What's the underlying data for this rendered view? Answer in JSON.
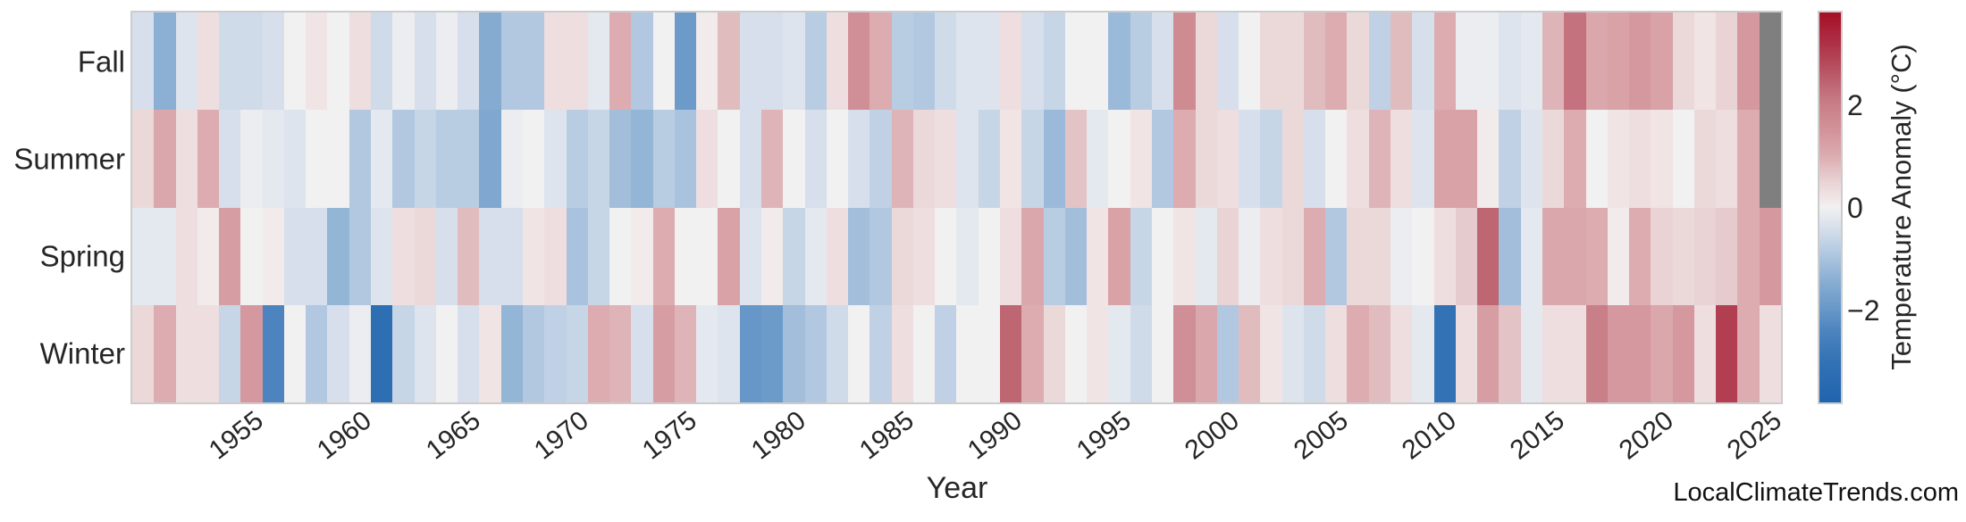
{
  "watermark": "LocalClimateTrends.com",
  "chart_data": {
    "type": "heatmap",
    "title": "",
    "xlabel": "Year",
    "ylabel": "",
    "legend_position": "right-colorbar",
    "grid": false,
    "rows": [
      "Fall",
      "Summer",
      "Spring",
      "Winter"
    ],
    "years": [
      1950,
      1951,
      1952,
      1953,
      1954,
      1955,
      1956,
      1957,
      1958,
      1959,
      1960,
      1961,
      1962,
      1963,
      1964,
      1965,
      1966,
      1967,
      1968,
      1969,
      1970,
      1971,
      1972,
      1973,
      1974,
      1975,
      1976,
      1977,
      1978,
      1979,
      1980,
      1981,
      1982,
      1983,
      1984,
      1985,
      1986,
      1987,
      1988,
      1989,
      1990,
      1991,
      1992,
      1993,
      1994,
      1995,
      1996,
      1997,
      1998,
      1999,
      2000,
      2001,
      2002,
      2003,
      2004,
      2005,
      2006,
      2007,
      2008,
      2009,
      2010,
      2011,
      2012,
      2013,
      2014,
      2015,
      2016,
      2017,
      2018,
      2019,
      2020,
      2021,
      2022,
      2023,
      2024,
      2025
    ],
    "x_ticks": [
      1955,
      1960,
      1965,
      1970,
      1975,
      1980,
      1985,
      1990,
      1995,
      2000,
      2005,
      2010,
      2015,
      2020,
      2025
    ],
    "series": [
      {
        "name": "Fall",
        "values": [
          -0.4,
          -1.4,
          -0.3,
          0.3,
          -0.5,
          -0.5,
          -0.4,
          0,
          0.2,
          0,
          0.3,
          -0.5,
          -0.1,
          -0.4,
          -0.1,
          -0.4,
          -1.5,
          -0.9,
          -0.9,
          0.3,
          0.3,
          -0.2,
          1,
          -0.9,
          0,
          -1.9,
          0.1,
          0.8,
          -0.4,
          -0.4,
          -0.3,
          -0.8,
          0.3,
          1.6,
          1,
          -0.8,
          -0.9,
          -0.5,
          -0.3,
          -0.3,
          0.3,
          -0.4,
          -0.6,
          0,
          0,
          -1.2,
          -0.8,
          -0.4,
          1.7,
          0.4,
          -0.4,
          0,
          0.4,
          0.4,
          0.8,
          1,
          0.4,
          -0.7,
          0.8,
          -0.4,
          1,
          -0.1,
          -0.1,
          -0.3,
          -0.2,
          0.9,
          2.2,
          1.1,
          1.2,
          1.4,
          1.2,
          0.4,
          0.2,
          0.5,
          1.4,
          null
        ]
      },
      {
        "name": "Summer",
        "values": [
          0.4,
          1.1,
          0.3,
          1,
          -0.4,
          -0.1,
          -0.2,
          -0.3,
          0,
          0,
          -0.9,
          -0.2,
          -0.9,
          -0.6,
          -0.8,
          -0.8,
          -1.6,
          -0.1,
          0,
          -0.3,
          -0.8,
          -0.6,
          -1.1,
          -1.3,
          -0.8,
          -1,
          0.3,
          0,
          -0.4,
          0.9,
          0,
          -0.4,
          0,
          -0.4,
          -0.7,
          0.9,
          0.4,
          0.3,
          -0.3,
          -0.6,
          0.2,
          -0.6,
          -1.2,
          0.7,
          -0.2,
          0,
          0.2,
          -0.9,
          1,
          0.4,
          0.3,
          -0.4,
          -0.6,
          0.4,
          -0.4,
          0,
          0.3,
          0.9,
          0.3,
          -0.3,
          1.2,
          1.2,
          0.1,
          -0.7,
          -0.3,
          0.4,
          1,
          0,
          0.2,
          0.3,
          0.2,
          0,
          0.4,
          0.3,
          1,
          null
        ]
      },
      {
        "name": "Spring",
        "values": [
          -0.2,
          -0.2,
          0.3,
          0.1,
          1.3,
          0,
          0.1,
          -0.4,
          -0.4,
          -1.3,
          -0.9,
          -0.3,
          0.3,
          0.4,
          -0.4,
          0.8,
          -0.4,
          -0.4,
          0.2,
          0.3,
          -1,
          -0.6,
          0,
          0.1,
          1,
          0,
          0,
          1.2,
          -0.3,
          0.1,
          -0.6,
          -0.2,
          0.3,
          -1.1,
          -0.9,
          0.4,
          0.3,
          0,
          -0.2,
          0,
          0.3,
          1.1,
          -0.8,
          -1.1,
          0.2,
          1.2,
          -0.6,
          0,
          0.2,
          -0.2,
          0.5,
          -0.1,
          0.3,
          0.4,
          1,
          -0.9,
          0.4,
          0.4,
          -0.1,
          0,
          0.3,
          0.6,
          2.4,
          -1.1,
          -0.2,
          1.1,
          1.1,
          1,
          0.1,
          1,
          0.5,
          0.4,
          0.5,
          0.6,
          1,
          1.4
        ]
      },
      {
        "name": "Winter",
        "values": [
          0.4,
          1,
          0.3,
          0.3,
          -0.6,
          1.4,
          -2.4,
          0,
          -0.9,
          -0.4,
          -0.1,
          -3.2,
          -0.6,
          -0.3,
          0,
          -0.4,
          0.2,
          -1.3,
          -0.9,
          -0.7,
          -0.6,
          1,
          0.9,
          -0.4,
          1.3,
          0.9,
          -0.2,
          -0.3,
          -2,
          -1.9,
          -1.1,
          -0.9,
          -0.5,
          0,
          -0.7,
          0.3,
          0,
          -0.7,
          0,
          0,
          2.4,
          1,
          0.4,
          0,
          0.2,
          -0.2,
          -0.5,
          0,
          1.6,
          1.1,
          -0.9,
          0.8,
          0.2,
          -0.3,
          -0.5,
          0.3,
          1,
          0.8,
          0.3,
          -0.2,
          -3,
          0.3,
          1.3,
          0.7,
          -0.2,
          0.3,
          0.3,
          2,
          1.4,
          1.4,
          1.1,
          1.4,
          0.3,
          3,
          1,
          0.3
        ]
      }
    ],
    "colorbar": {
      "label": "Temperature Anomaly (°C)",
      "ticks": [
        {
          "value": 2,
          "label": "2"
        },
        {
          "value": 0,
          "label": "0"
        },
        {
          "value": -2,
          "label": "−2"
        }
      ],
      "vmin": -3.8,
      "vmax": 3.8
    },
    "colors": {
      "missing": "#7f7f7f",
      "plot_border": "#cccccc",
      "text": "#262626",
      "colormap_stops": [
        {
          "v": -3.8,
          "c": "#2164ae"
        },
        {
          "v": -3.0,
          "c": "#3272b5"
        },
        {
          "v": -2.4,
          "c": "#4d84bf"
        },
        {
          "v": -2.0,
          "c": "#6697c8"
        },
        {
          "v": -1.5,
          "c": "#85abd1"
        },
        {
          "v": -1.0,
          "c": "#a9c3de"
        },
        {
          "v": -0.5,
          "c": "#cfdbe9"
        },
        {
          "v": -0.2,
          "c": "#e4e8ef"
        },
        {
          "v": 0.0,
          "c": "#f2f1f1"
        },
        {
          "v": 0.2,
          "c": "#f0e4e5"
        },
        {
          "v": 0.5,
          "c": "#e9d3d5"
        },
        {
          "v": 1.0,
          "c": "#dcacb1"
        },
        {
          "v": 1.5,
          "c": "#d29399"
        },
        {
          "v": 2.0,
          "c": "#c87f88"
        },
        {
          "v": 2.4,
          "c": "#bf6673"
        },
        {
          "v": 2.8,
          "c": "#b54a5b"
        },
        {
          "v": 3.2,
          "c": "#ad3146"
        },
        {
          "v": 3.8,
          "c": "#a50f26"
        }
      ]
    }
  }
}
